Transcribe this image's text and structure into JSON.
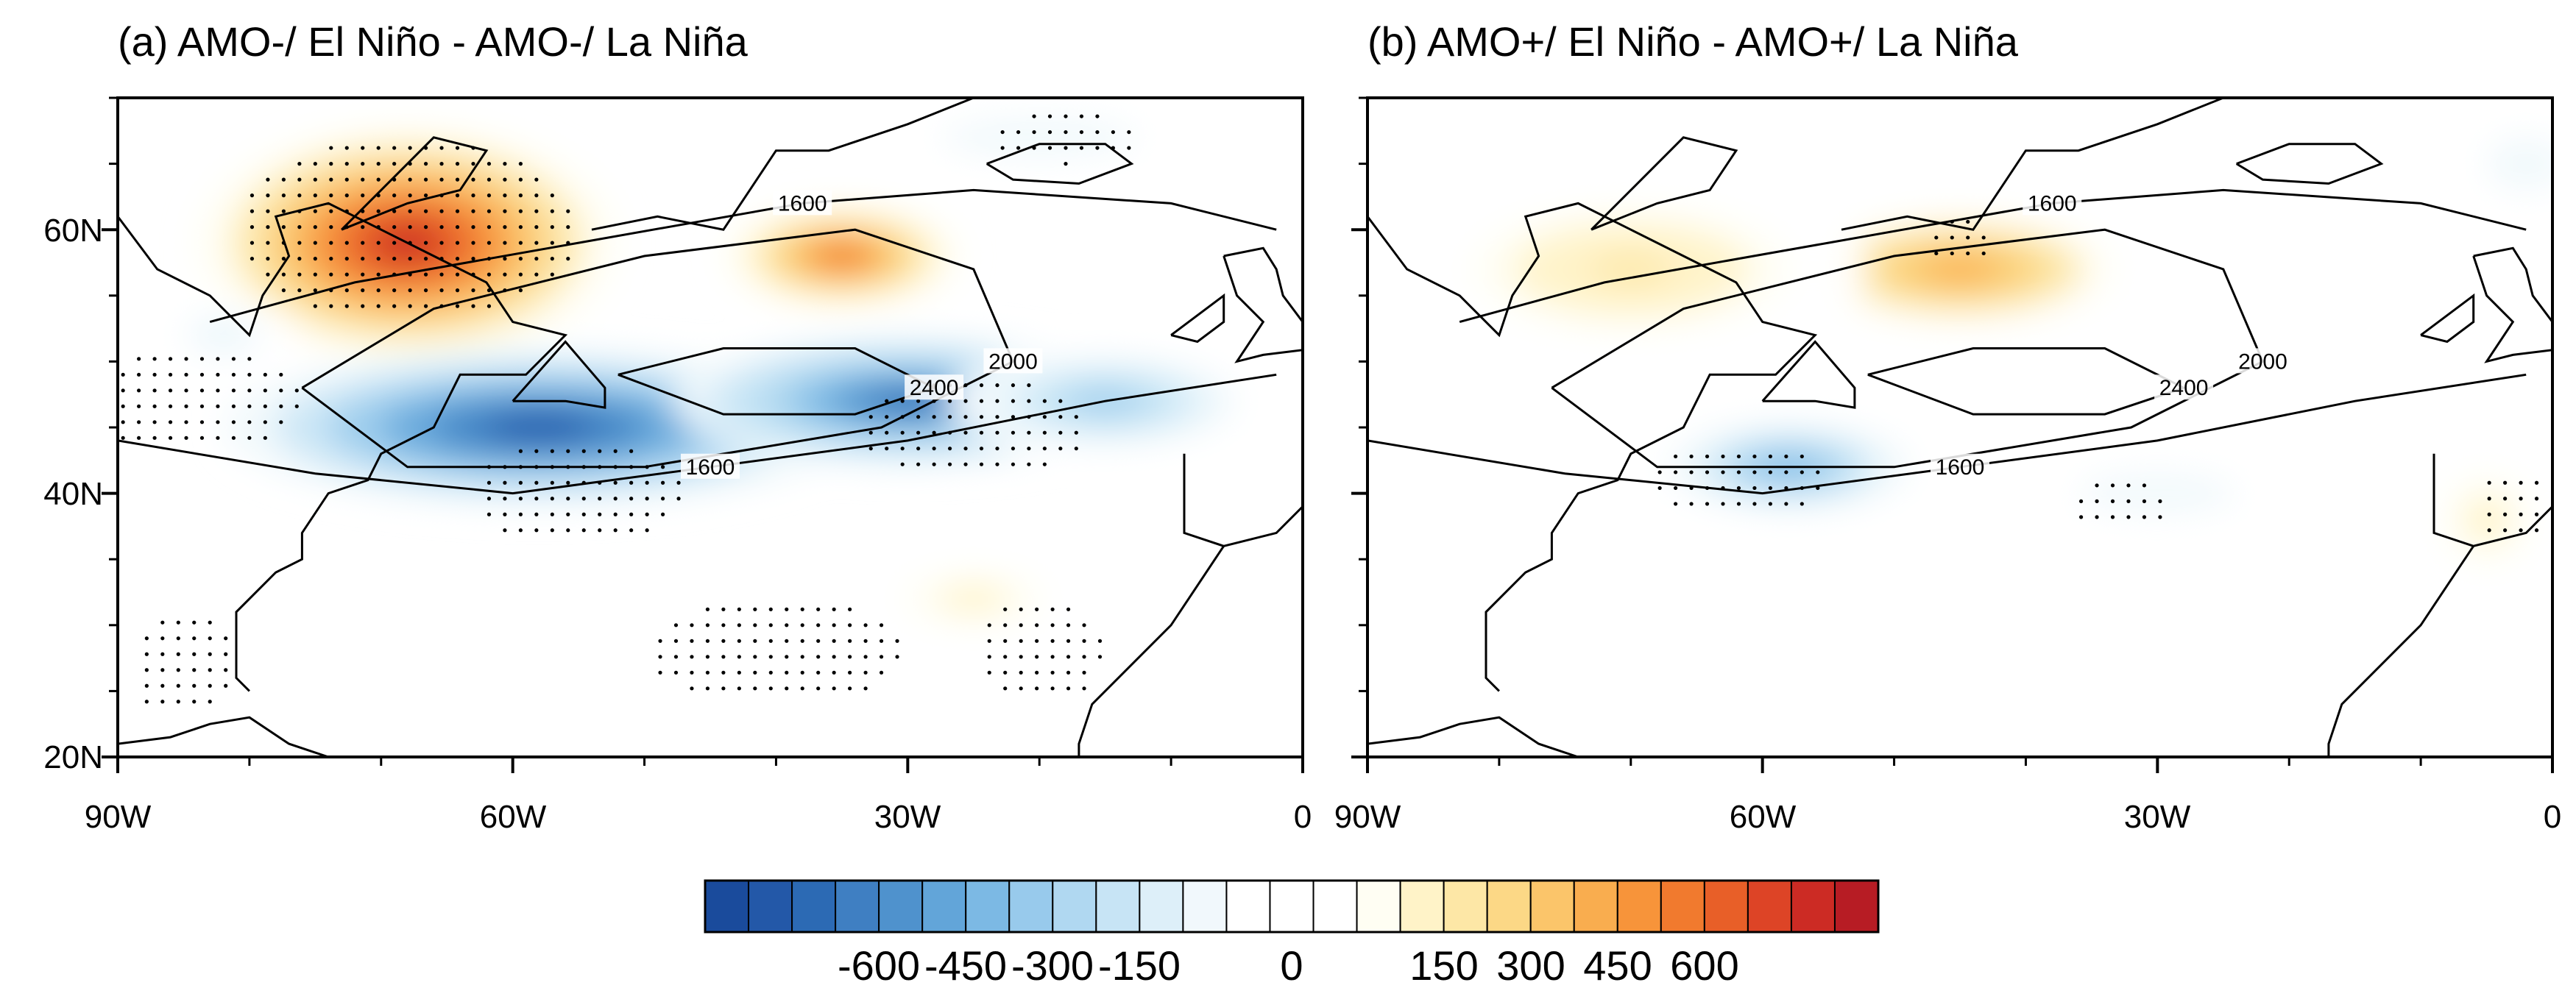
{
  "figure": {
    "panels": [
      {
        "id": "a",
        "title": "(a) AMO-/ El Niño - AMO-/ La Niña"
      },
      {
        "id": "b",
        "title": "(b) AMO+/ El Niño - AMO+/ La Niña"
      }
    ],
    "lon_ticks": [
      "90W",
      "60W",
      "30W",
      "0"
    ],
    "lat_ticks": [
      "60N",
      "40N",
      "20N"
    ],
    "colorbar_labels": [
      "-600",
      "-450",
      "-300",
      "-150",
      "0",
      "150",
      "300",
      "450",
      "600"
    ]
  },
  "chart_data": {
    "type": "heatmap",
    "description_kind": "filled contour map with line contours",
    "lon_range": [
      -90,
      0
    ],
    "lat_range": [
      20,
      70
    ],
    "lon_ticks": [
      -90,
      -60,
      -30,
      0
    ],
    "lat_ticks": [
      20,
      40,
      60
    ],
    "colorbar": {
      "min": -675,
      "max": 675,
      "step": 50,
      "labels": [
        -600,
        -450,
        -300,
        -150,
        0,
        150,
        300,
        450,
        600
      ],
      "colors": [
        "#1a4b9c",
        "#2358a8",
        "#2c6ab4",
        "#3f7fc2",
        "#4f92cd",
        "#62a5d9",
        "#7cb9e4",
        "#98caec",
        "#b0d8f1",
        "#c7e4f5",
        "#ddeff9",
        "#f1f8fc",
        "#ffffff",
        "#ffffff",
        "#ffffff",
        "#fffef3",
        "#fff3c8",
        "#fde7a6",
        "#fcd886",
        "#fbc56a",
        "#f9ad4f",
        "#f7943a",
        "#f17a2e",
        "#e85f28",
        "#dd4426",
        "#cc2b24",
        "#b71c24"
      ]
    },
    "contour_levels": [
      1600,
      2000,
      2400
    ],
    "panels": [
      {
        "id": "a",
        "title": "(a) AMO-/ El Niño - AMO-/ La Niña",
        "anomaly_centers": [
          {
            "lon": -68,
            "lat": 59,
            "value": 600,
            "rx": 16,
            "ry": 9
          },
          {
            "lon": -35,
            "lat": 58,
            "value": 450,
            "rx": 9,
            "ry": 4
          },
          {
            "lon": -58,
            "lat": 45,
            "value": -600,
            "rx": 24,
            "ry": 6
          },
          {
            "lon": -30,
            "lat": 47,
            "value": -550,
            "rx": 18,
            "ry": 5
          },
          {
            "lon": -15,
            "lat": 47,
            "value": -300,
            "rx": 12,
            "ry": 4
          },
          {
            "lon": -25,
            "lat": 32,
            "value": 150,
            "rx": 8,
            "ry": 3
          },
          {
            "lon": -20,
            "lat": 67,
            "value": -120,
            "rx": 15,
            "ry": 3
          },
          {
            "lon": -82,
            "lat": 52,
            "value": -150,
            "rx": 6,
            "ry": 3
          }
        ],
        "contours": [
          {
            "level": 1600,
            "label": "1600",
            "points": [
              [
                -83,
                53
              ],
              [
                -72,
                56
              ],
              [
                -55,
                59
              ],
              [
                -38,
                62
              ],
              [
                -25,
                63
              ],
              [
                -10,
                62
              ],
              [
                -2,
                60
              ]
            ]
          },
          {
            "level": 2000,
            "label": "2000",
            "points": [
              [
                -76,
                48
              ],
              [
                -66,
                54
              ],
              [
                -50,
                58
              ],
              [
                -34,
                60
              ],
              [
                -25,
                57
              ],
              [
                -22,
                50
              ],
              [
                -32,
                45
              ],
              [
                -50,
                42
              ],
              [
                -68,
                42
              ],
              [
                -76,
                48
              ]
            ]
          },
          {
            "level": 2400,
            "label": "2400",
            "points": [
              [
                -52,
                49
              ],
              [
                -44,
                51
              ],
              [
                -34,
                51
              ],
              [
                -28,
                48
              ],
              [
                -34,
                46
              ],
              [
                -44,
                46
              ],
              [
                -52,
                49
              ]
            ]
          },
          {
            "level": 1600,
            "label": "1600",
            "points": [
              [
                -90,
                44
              ],
              [
                -75,
                41.5
              ],
              [
                -60,
                40
              ],
              [
                -45,
                42
              ],
              [
                -30,
                44
              ],
              [
                -15,
                47
              ],
              [
                -2,
                49
              ]
            ]
          }
        ],
        "stippling": [
          {
            "lon": -68,
            "lat": 60,
            "rlon": 13,
            "rlat": 7
          },
          {
            "lon": -84,
            "lat": 47,
            "rlon": 8,
            "rlat": 4
          },
          {
            "lon": -55,
            "lat": 40,
            "rlon": 8,
            "rlat": 4
          },
          {
            "lon": -25,
            "lat": 45,
            "rlon": 9,
            "rlat": 4
          },
          {
            "lon": -40,
            "lat": 28,
            "rlon": 10,
            "rlat": 4
          },
          {
            "lon": -20,
            "lat": 28,
            "rlon": 5,
            "rlat": 4
          },
          {
            "lon": -85,
            "lat": 27,
            "rlon": 4,
            "rlat": 4
          },
          {
            "lon": -18,
            "lat": 67,
            "rlon": 6,
            "rlat": 2
          }
        ]
      },
      {
        "id": "b",
        "title": "(b) AMO+/ El Niño - AMO+/ La Niña",
        "anomaly_centers": [
          {
            "lon": -45,
            "lat": 57,
            "value": 350,
            "rx": 14,
            "ry": 5
          },
          {
            "lon": -70,
            "lat": 57,
            "value": 200,
            "rx": 18,
            "ry": 7
          },
          {
            "lon": -58,
            "lat": 42,
            "value": -350,
            "rx": 11,
            "ry": 4
          },
          {
            "lon": -30,
            "lat": 40,
            "value": -120,
            "rx": 12,
            "ry": 3
          },
          {
            "lon": -5,
            "lat": 38,
            "value": 150,
            "rx": 5,
            "ry": 5
          },
          {
            "lon": -2,
            "lat": 65,
            "value": -120,
            "rx": 6,
            "ry": 4
          }
        ],
        "contours": [
          {
            "level": 1600,
            "label": "1600",
            "points": [
              [
                -83,
                53
              ],
              [
                -72,
                56
              ],
              [
                -55,
                59
              ],
              [
                -38,
                62
              ],
              [
                -25,
                63
              ],
              [
                -10,
                62
              ],
              [
                -2,
                60
              ]
            ]
          },
          {
            "level": 2000,
            "label": "2000",
            "points": [
              [
                -76,
                48
              ],
              [
                -66,
                54
              ],
              [
                -50,
                58
              ],
              [
                -34,
                60
              ],
              [
                -25,
                57
              ],
              [
                -22,
                50
              ],
              [
                -32,
                45
              ],
              [
                -50,
                42
              ],
              [
                -68,
                42
              ],
              [
                -76,
                48
              ]
            ]
          },
          {
            "level": 2400,
            "label": "2400",
            "points": [
              [
                -52,
                49
              ],
              [
                -44,
                51
              ],
              [
                -34,
                51
              ],
              [
                -28,
                48
              ],
              [
                -34,
                46
              ],
              [
                -44,
                46
              ],
              [
                -52,
                49
              ]
            ]
          },
          {
            "level": 1600,
            "label": "1600",
            "points": [
              [
                -90,
                44
              ],
              [
                -75,
                41.5
              ],
              [
                -60,
                40
              ],
              [
                -45,
                42
              ],
              [
                -30,
                44
              ],
              [
                -15,
                47
              ],
              [
                -2,
                49
              ]
            ]
          }
        ],
        "stippling": [
          {
            "lon": -62,
            "lat": 41,
            "rlon": 7,
            "rlat": 3
          },
          {
            "lon": -33,
            "lat": 39,
            "rlon": 4,
            "rlat": 2
          },
          {
            "lon": -3,
            "lat": 39,
            "rlon": 3,
            "rlat": 3
          },
          {
            "lon": -45,
            "lat": 59,
            "rlon": 3,
            "rlat": 2
          }
        ]
      }
    ]
  }
}
